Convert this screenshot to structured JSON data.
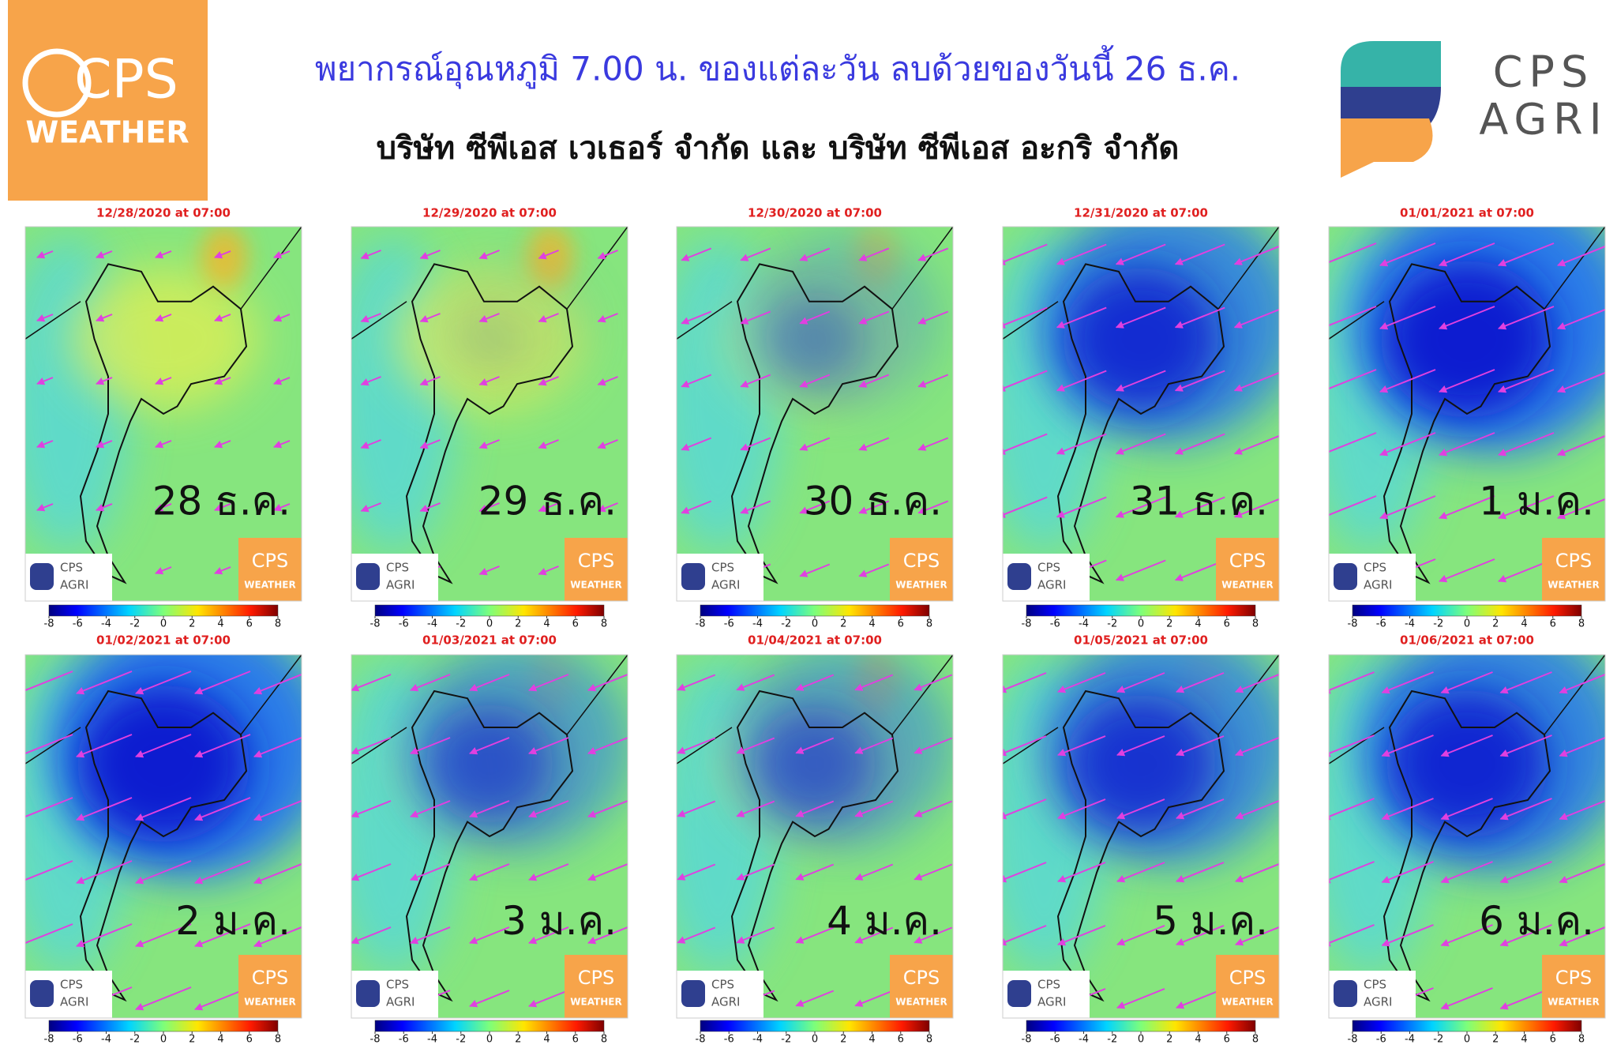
{
  "header": {
    "title": "พยากรณ์อุณหภูมิ 7.00 น. ของแต่ละวัน ลบด้วยของวันนี้ 26 ธ.ค.",
    "subtitle": "บริษัท ซีพีเอส เวเธอร์ จำกัด และ บริษัท ซีพีเอส อะกริ จำกัด",
    "logo_left": {
      "line1": "CPS",
      "line2": "WEATHER"
    },
    "logo_right": {
      "line1": "CPS",
      "line2": "AGRI"
    }
  },
  "colorbar": {
    "ticks": [
      -8,
      -6,
      -4,
      -2,
      0,
      2,
      4,
      6,
      8
    ]
  },
  "panels": [
    {
      "date": "12/28/2020 at 07:00",
      "label": "28 ธ.ค."
    },
    {
      "date": "12/29/2020 at 07:00",
      "label": "29 ธ.ค."
    },
    {
      "date": "12/30/2020 at 07:00",
      "label": "30 ธ.ค."
    },
    {
      "date": "12/31/2020 at 07:00",
      "label": "31 ธ.ค."
    },
    {
      "date": "01/01/2021 at 07:00",
      "label": "1 ม.ค."
    },
    {
      "date": "01/02/2021 at 07:00",
      "label": "2 ม.ค."
    },
    {
      "date": "01/03/2021 at 07:00",
      "label": "3 ม.ค."
    },
    {
      "date": "01/04/2021 at 07:00",
      "label": "4 ม.ค."
    },
    {
      "date": "01/05/2021 at 07:00",
      "label": "5 ม.ค."
    },
    {
      "date": "01/06/2021 at 07:00",
      "label": "6 ม.ค."
    }
  ]
}
